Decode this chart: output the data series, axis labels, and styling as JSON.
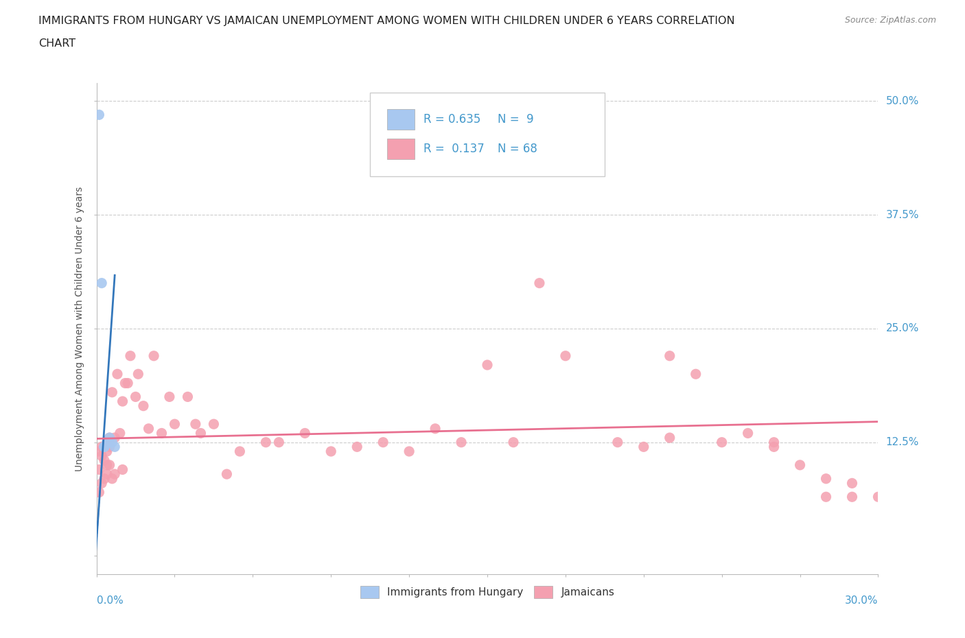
{
  "title_line1": "IMMIGRANTS FROM HUNGARY VS JAMAICAN UNEMPLOYMENT AMONG WOMEN WITH CHILDREN UNDER 6 YEARS CORRELATION",
  "title_line2": "CHART",
  "source": "Source: ZipAtlas.com",
  "ylabel": "Unemployment Among Women with Children Under 6 years",
  "xlim": [
    0.0,
    0.3
  ],
  "ylim": [
    -0.02,
    0.52
  ],
  "color_hungary": "#a8c8f0",
  "color_jamaica": "#f4a0b0",
  "color_hungary_line": "#3377bb",
  "color_jamaica_line": "#e87090",
  "color_text_blue": "#4499cc",
  "hungary_x": [
    0.001,
    0.002,
    0.003,
    0.003,
    0.004,
    0.005,
    0.005,
    0.006,
    0.007
  ],
  "hungary_y": [
    0.485,
    0.3,
    0.12,
    0.12,
    0.125,
    0.125,
    0.13,
    0.125,
    0.12
  ],
  "jamaica_x": [
    0.001,
    0.001,
    0.001,
    0.002,
    0.002,
    0.002,
    0.003,
    0.003,
    0.003,
    0.004,
    0.004,
    0.004,
    0.005,
    0.005,
    0.005,
    0.006,
    0.006,
    0.007,
    0.007,
    0.008,
    0.009,
    0.01,
    0.01,
    0.011,
    0.012,
    0.013,
    0.015,
    0.016,
    0.018,
    0.02,
    0.022,
    0.025,
    0.028,
    0.03,
    0.035,
    0.038,
    0.04,
    0.045,
    0.05,
    0.055,
    0.065,
    0.07,
    0.08,
    0.09,
    0.1,
    0.11,
    0.12,
    0.13,
    0.14,
    0.16,
    0.17,
    0.18,
    0.2,
    0.21,
    0.22,
    0.23,
    0.24,
    0.25,
    0.26,
    0.26,
    0.27,
    0.28,
    0.28,
    0.29,
    0.29,
    0.3,
    0.22,
    0.15
  ],
  "jamaica_y": [
    0.095,
    0.115,
    0.07,
    0.11,
    0.08,
    0.12,
    0.085,
    0.105,
    0.12,
    0.09,
    0.1,
    0.115,
    0.13,
    0.1,
    0.12,
    0.18,
    0.085,
    0.13,
    0.09,
    0.2,
    0.135,
    0.17,
    0.095,
    0.19,
    0.19,
    0.22,
    0.175,
    0.2,
    0.165,
    0.14,
    0.22,
    0.135,
    0.175,
    0.145,
    0.175,
    0.145,
    0.135,
    0.145,
    0.09,
    0.115,
    0.125,
    0.125,
    0.135,
    0.115,
    0.12,
    0.125,
    0.115,
    0.14,
    0.125,
    0.125,
    0.3,
    0.22,
    0.125,
    0.12,
    0.13,
    0.2,
    0.125,
    0.135,
    0.125,
    0.12,
    0.1,
    0.085,
    0.065,
    0.065,
    0.08,
    0.065,
    0.22,
    0.21
  ],
  "ytick_vals": [
    0.0,
    0.125,
    0.25,
    0.375,
    0.5
  ],
  "ytick_right_labels": [
    "12.5%",
    "25.0%",
    "37.5%",
    "50.0%"
  ],
  "ytick_right_vals": [
    0.125,
    0.25,
    0.375,
    0.5
  ]
}
